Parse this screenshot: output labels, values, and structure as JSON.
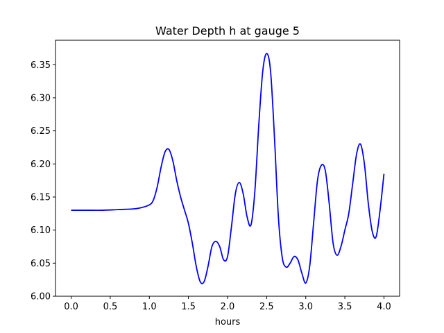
{
  "chart_data": {
    "type": "line",
    "title": "Water Depth h at gauge 5",
    "xlabel": "hours",
    "ylabel": "",
    "xlim": [
      -0.2,
      4.2
    ],
    "ylim": [
      6.0,
      6.387
    ],
    "xticks": [
      0.0,
      0.5,
      1.0,
      1.5,
      2.0,
      2.5,
      3.0,
      3.5,
      4.0
    ],
    "xtick_labels": [
      "0.0",
      "0.5",
      "1.0",
      "1.5",
      "2.0",
      "2.5",
      "3.0",
      "3.5",
      "4.0"
    ],
    "yticks": [
      6.0,
      6.05,
      6.1,
      6.15,
      6.2,
      6.25,
      6.3,
      6.35
    ],
    "ytick_labels": [
      "6.00",
      "6.05",
      "6.10",
      "6.15",
      "6.20",
      "6.25",
      "6.30",
      "6.35"
    ],
    "grid": false,
    "series": [
      {
        "color": "#0000ff",
        "x": [
          0.0,
          0.2,
          0.4,
          0.6,
          0.8,
          0.9,
          1.0,
          1.05,
          1.1,
          1.15,
          1.2,
          1.25,
          1.3,
          1.35,
          1.4,
          1.45,
          1.5,
          1.55,
          1.6,
          1.65,
          1.7,
          1.75,
          1.8,
          1.85,
          1.9,
          1.95,
          2.0,
          2.05,
          2.1,
          2.15,
          2.2,
          2.25,
          2.3,
          2.35,
          2.4,
          2.45,
          2.5,
          2.55,
          2.6,
          2.65,
          2.7,
          2.75,
          2.8,
          2.85,
          2.9,
          2.95,
          3.0,
          3.05,
          3.1,
          3.15,
          3.2,
          3.25,
          3.3,
          3.35,
          3.4,
          3.45,
          3.5,
          3.55,
          3.6,
          3.65,
          3.7,
          3.75,
          3.8,
          3.85,
          3.9,
          3.95,
          4.0
        ],
        "y": [
          6.13,
          6.13,
          6.13,
          6.131,
          6.132,
          6.134,
          6.138,
          6.145,
          6.165,
          6.195,
          6.218,
          6.222,
          6.205,
          6.175,
          6.15,
          6.13,
          6.11,
          6.08,
          6.045,
          6.022,
          6.022,
          6.045,
          6.075,
          6.083,
          6.075,
          6.055,
          6.06,
          6.105,
          6.155,
          6.172,
          6.155,
          6.12,
          6.108,
          6.16,
          6.26,
          6.34,
          6.367,
          6.34,
          6.24,
          6.12,
          6.058,
          6.044,
          6.05,
          6.06,
          6.055,
          6.035,
          6.02,
          6.045,
          6.11,
          6.175,
          6.198,
          6.19,
          6.14,
          6.08,
          6.062,
          6.075,
          6.1,
          6.125,
          6.17,
          6.215,
          6.23,
          6.2,
          6.14,
          6.098,
          6.09,
          6.13,
          6.185
        ]
      }
    ]
  }
}
